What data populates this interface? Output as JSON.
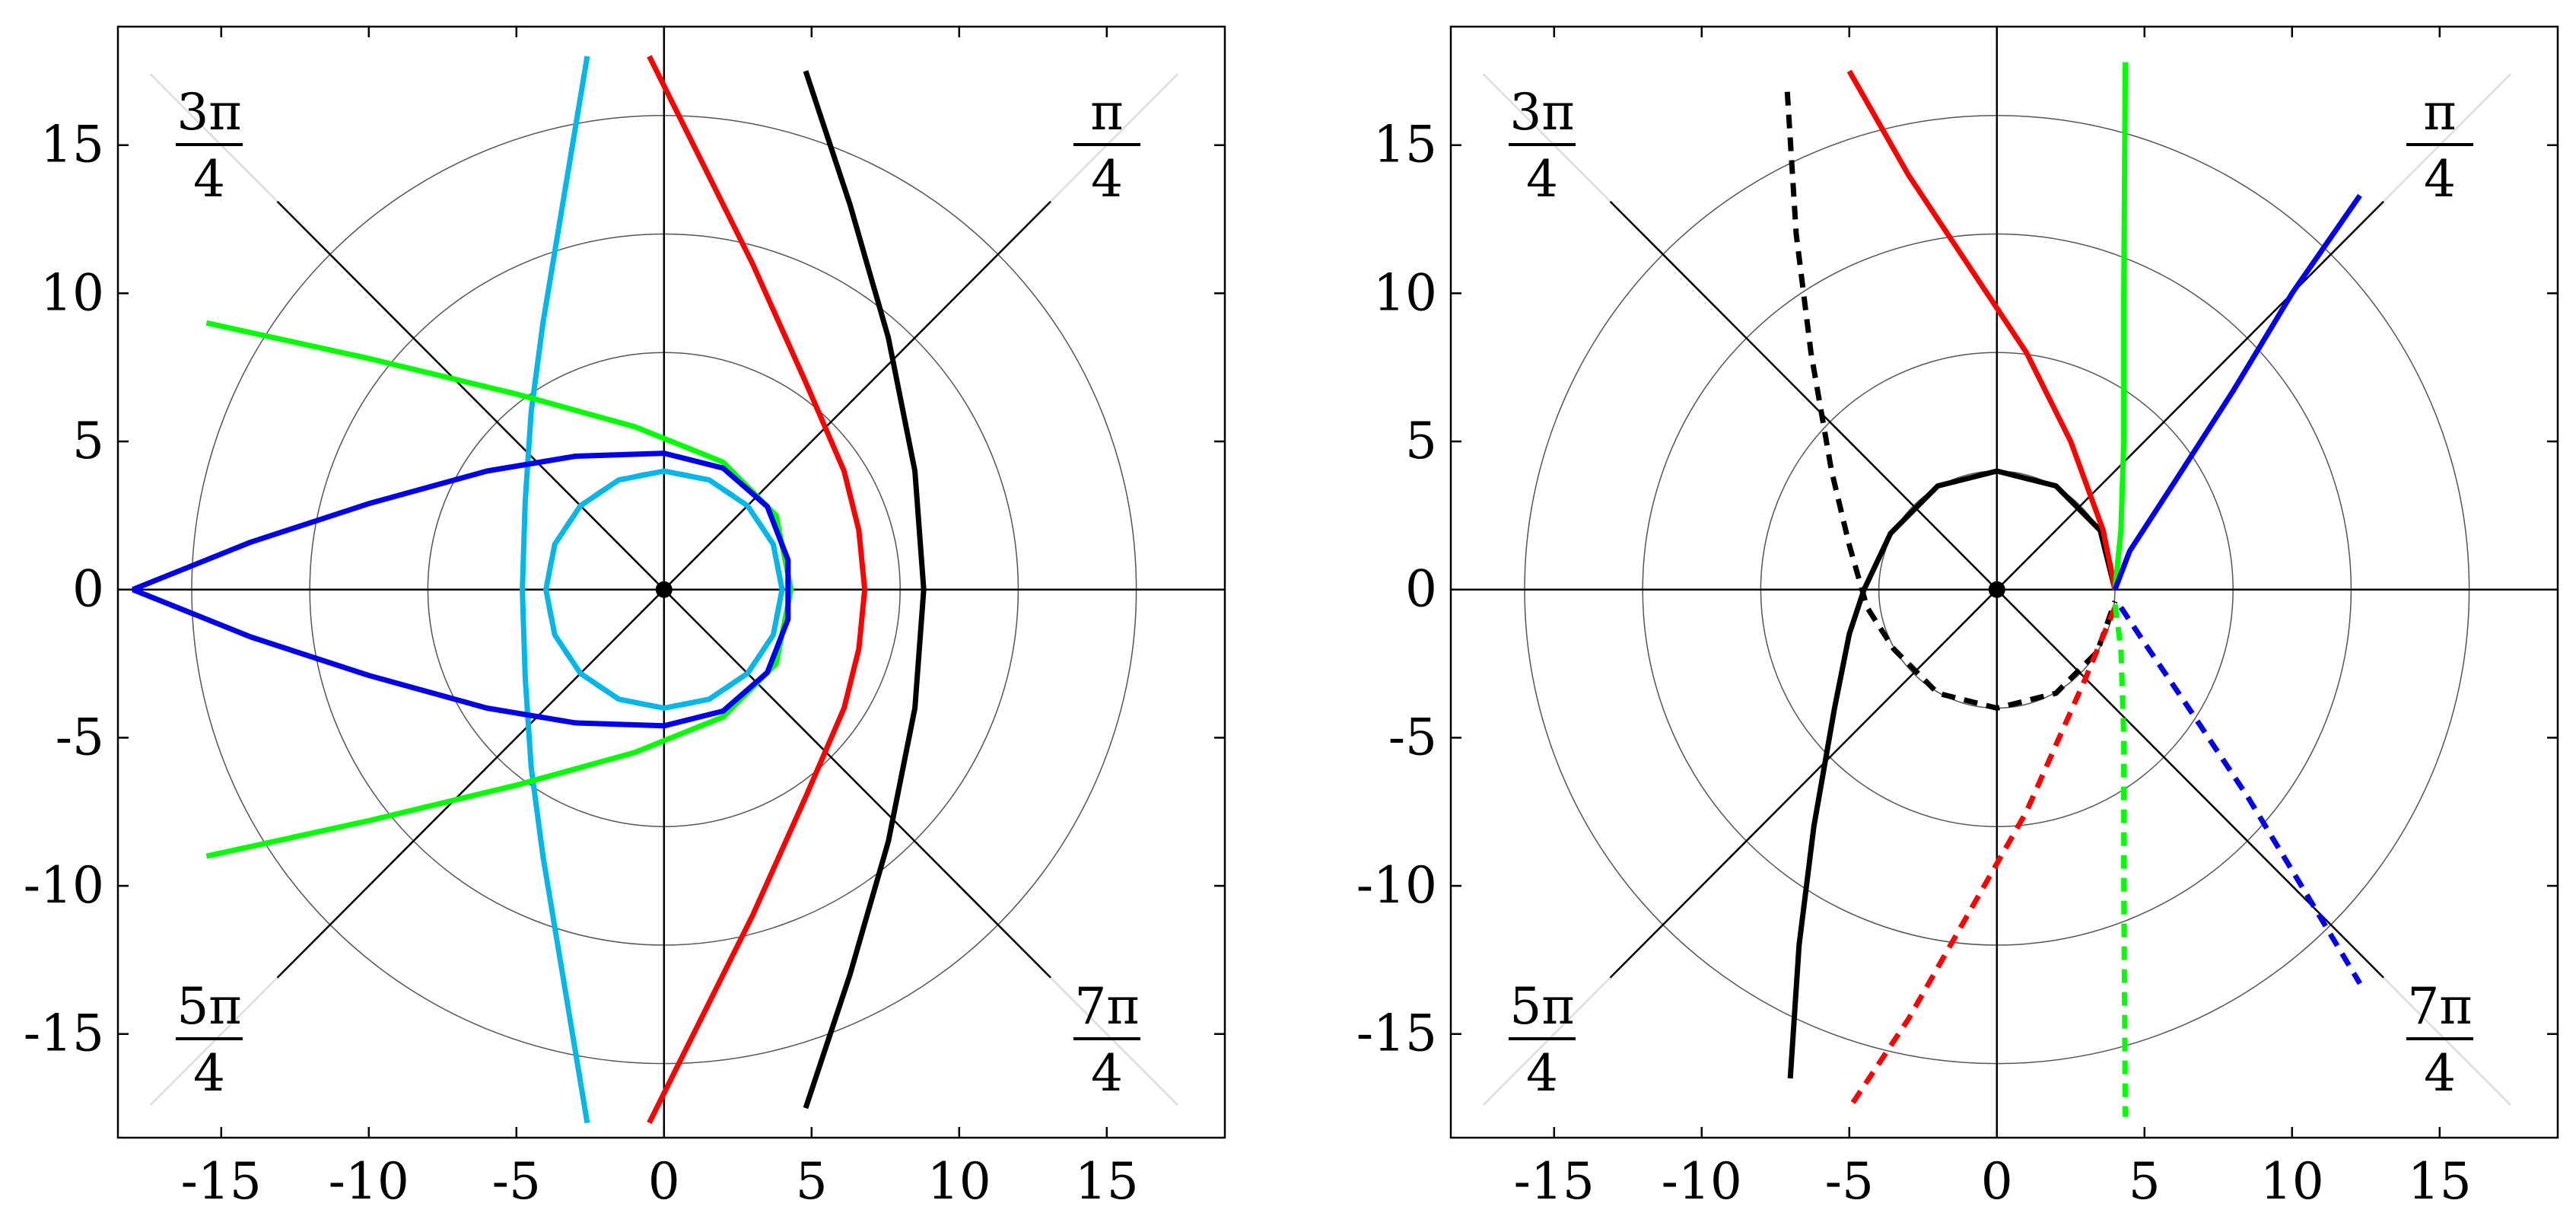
{
  "chart_data": [
    {
      "type": "line",
      "title": "",
      "xlabel": "",
      "ylabel": "",
      "xlim": [
        -18.5,
        19
      ],
      "ylim": [
        -18.5,
        19
      ],
      "x_ticks": [
        -15,
        -10,
        -5,
        0,
        5,
        10,
        15
      ],
      "x_tick_labels": [
        "-15",
        "-10",
        "-5",
        "0",
        "5",
        "10",
        "15"
      ],
      "y_ticks": [
        15,
        10,
        5,
        0,
        -5,
        -10,
        -15
      ],
      "y_tick_labels": [
        "15",
        "10",
        "5",
        "0",
        "-5",
        "-10",
        "-15"
      ],
      "grid_circle_radii": [
        4,
        8,
        12,
        16
      ],
      "angle_labels": [
        {
          "num": "3π",
          "den": "4",
          "angle": "3π/4"
        },
        {
          "num": "π",
          "den": "4",
          "angle": "π/4"
        },
        {
          "num": "5π",
          "den": "4",
          "angle": "5π/4"
        },
        {
          "num": "7π",
          "den": "4",
          "angle": "7π/4"
        }
      ],
      "origin_marker": [
        0,
        0
      ],
      "series": [
        {
          "color": "#00b7ea",
          "dash": false,
          "points": [
            [
              -2.6,
              18
            ],
            [
              -3.1,
              15
            ],
            [
              -3.6,
              12
            ],
            [
              -4.1,
              9
            ],
            [
              -4.5,
              6
            ],
            [
              -4.7,
              3
            ],
            [
              -4.8,
              0
            ],
            [
              -4.7,
              -3
            ],
            [
              -4.5,
              -6
            ],
            [
              -4.1,
              -9
            ],
            [
              -3.6,
              -12
            ],
            [
              -3.1,
              -15
            ],
            [
              -2.6,
              -18
            ]
          ]
        },
        {
          "color": "#00b7ea",
          "dash": false,
          "closed": true,
          "points": [
            [
              4,
              0
            ],
            [
              3.7,
              1.53
            ],
            [
              2.83,
              2.83
            ],
            [
              1.53,
              3.7
            ],
            [
              0,
              4
            ],
            [
              -1.53,
              3.7
            ],
            [
              -2.83,
              2.83
            ],
            [
              -3.7,
              1.53
            ],
            [
              -4,
              0
            ],
            [
              -3.7,
              -1.53
            ],
            [
              -2.83,
              -2.83
            ],
            [
              -1.53,
              -3.7
            ],
            [
              0,
              -4
            ],
            [
              1.53,
              -3.7
            ],
            [
              2.83,
              -2.83
            ],
            [
              3.7,
              -1.53
            ]
          ]
        },
        {
          "color": "#ff0000",
          "dash": false,
          "points": [
            [
              -0.5,
              18
            ],
            [
              1,
              15
            ],
            [
              3,
              11
            ],
            [
              4.8,
              7
            ],
            [
              6.1,
              4
            ],
            [
              6.6,
              2
            ],
            [
              6.8,
              0
            ],
            [
              6.6,
              -2
            ],
            [
              6.1,
              -4
            ],
            [
              4.8,
              -7
            ],
            [
              3,
              -11
            ],
            [
              1,
              -15
            ],
            [
              -0.5,
              -18
            ]
          ]
        },
        {
          "color": "#000000",
          "dash": false,
          "points": [
            [
              4.8,
              17.5
            ],
            [
              6.3,
              13
            ],
            [
              7.6,
              8.5
            ],
            [
              8.5,
              4
            ],
            [
              8.8,
              0
            ],
            [
              8.5,
              -4
            ],
            [
              7.6,
              -8.5
            ],
            [
              6.3,
              -13
            ],
            [
              4.8,
              -17.5
            ]
          ]
        },
        {
          "color": "#00ff00",
          "dash": false,
          "points": [
            [
              -15.5,
              9
            ],
            [
              -10,
              7.8
            ],
            [
              -5,
              6.6
            ],
            [
              -1,
              5.5
            ],
            [
              2,
              4.3
            ],
            [
              3.8,
              2.5
            ],
            [
              4.3,
              0
            ],
            [
              3.8,
              -2.5
            ],
            [
              2,
              -4.3
            ],
            [
              -1,
              -5.5
            ],
            [
              -5,
              -6.6
            ],
            [
              -10,
              -7.8
            ],
            [
              -15.5,
              -9
            ]
          ]
        },
        {
          "color": "#0000ee",
          "dash": false,
          "points": [
            [
              -18,
              0
            ],
            [
              -14,
              1.6
            ],
            [
              -10,
              2.9
            ],
            [
              -6,
              4
            ],
            [
              -3,
              4.5
            ],
            [
              0,
              4.6
            ],
            [
              2,
              4.1
            ],
            [
              3.5,
              2.8
            ],
            [
              4.2,
              1
            ],
            [
              4.2,
              -1
            ],
            [
              3.5,
              -2.8
            ],
            [
              2,
              -4.1
            ],
            [
              0,
              -4.6
            ],
            [
              -3,
              -4.5
            ],
            [
              -6,
              -4
            ],
            [
              -10,
              -2.9
            ],
            [
              -14,
              -1.6
            ],
            [
              -18,
              0
            ]
          ]
        }
      ]
    },
    {
      "type": "line",
      "title": "",
      "xlabel": "",
      "ylabel": "",
      "xlim": [
        -18.5,
        19
      ],
      "ylim": [
        -18.5,
        19
      ],
      "x_ticks": [
        -15,
        -10,
        -5,
        0,
        5,
        10,
        15
      ],
      "x_tick_labels": [
        "-15",
        "-10",
        "-5",
        "0",
        "5",
        "10",
        "15"
      ],
      "y_ticks": [
        15,
        10,
        5,
        0,
        -5,
        -10,
        -15
      ],
      "y_tick_labels": [
        "15",
        "10",
        "5",
        "0",
        "-5",
        "-10",
        "-15"
      ],
      "grid_circle_radii": [
        4,
        8,
        12,
        16
      ],
      "angle_labels": [
        {
          "num": "3π",
          "den": "4",
          "angle": "3π/4"
        },
        {
          "num": "π",
          "den": "4",
          "angle": "π/4"
        },
        {
          "num": "5π",
          "den": "4",
          "angle": "5π/4"
        },
        {
          "num": "7π",
          "den": "4",
          "angle": "7π/4"
        }
      ],
      "origin_marker": [
        0,
        0
      ],
      "series": [
        {
          "color": "#000000",
          "dash": false,
          "points": [
            [
              -7,
              -16.5
            ],
            [
              -6.7,
              -12
            ],
            [
              -6.2,
              -8
            ],
            [
              -5.5,
              -4
            ],
            [
              -5,
              -1.5
            ],
            [
              -4.5,
              0
            ],
            [
              -3.6,
              1.9
            ],
            [
              -2,
              3.5
            ],
            [
              0,
              4
            ],
            [
              2,
              3.5
            ],
            [
              3.5,
              2
            ],
            [
              4,
              0
            ]
          ]
        },
        {
          "color": "#000000",
          "dash": true,
          "points": [
            [
              -7.1,
              16.8
            ],
            [
              -6.8,
              12
            ],
            [
              -6.3,
              8
            ],
            [
              -5.6,
              4
            ],
            [
              -5,
              1.5
            ],
            [
              -4.4,
              -0.6
            ],
            [
              -3.5,
              -2
            ],
            [
              -2,
              -3.5
            ],
            [
              0,
              -4
            ],
            [
              2,
              -3.5
            ],
            [
              3.4,
              -2.1
            ],
            [
              4,
              -0.4
            ]
          ]
        },
        {
          "color": "#ff0000",
          "dash": false,
          "points": [
            [
              -5,
              17.5
            ],
            [
              -3,
              14
            ],
            [
              -1,
              11
            ],
            [
              1,
              8
            ],
            [
              2.5,
              5
            ],
            [
              3.6,
              2
            ],
            [
              4,
              0
            ]
          ]
        },
        {
          "color": "#ff0000",
          "dash": true,
          "points": [
            [
              4,
              -0.6
            ],
            [
              3,
              -3
            ],
            [
              1,
              -7.5
            ],
            [
              -1,
              -11
            ],
            [
              -3,
              -14.5
            ],
            [
              -5,
              -17.5
            ]
          ]
        },
        {
          "color": "#00ff00",
          "dash": false,
          "points": [
            [
              4,
              0
            ],
            [
              4.2,
              2
            ],
            [
              4.3,
              5
            ],
            [
              4.3,
              10
            ],
            [
              4.35,
              17.8
            ]
          ]
        },
        {
          "color": "#00ff00",
          "dash": true,
          "points": [
            [
              4,
              -0.5
            ],
            [
              4.2,
              -2
            ],
            [
              4.3,
              -5
            ],
            [
              4.3,
              -10
            ],
            [
              4.35,
              -17.8
            ]
          ]
        },
        {
          "color": "#0000ee",
          "dash": false,
          "points": [
            [
              4,
              0
            ],
            [
              4.5,
              1.3
            ],
            [
              6,
              3.6
            ],
            [
              8,
              6.7
            ],
            [
              10,
              10
            ],
            [
              12.3,
              13.3
            ]
          ]
        },
        {
          "color": "#0000ee",
          "dash": true,
          "points": [
            [
              4.2,
              -0.6
            ],
            [
              5,
              -1.8
            ],
            [
              6.5,
              -4
            ],
            [
              8.5,
              -7
            ],
            [
              10.5,
              -10.3
            ],
            [
              12.3,
              -13.3
            ]
          ]
        }
      ]
    }
  ]
}
